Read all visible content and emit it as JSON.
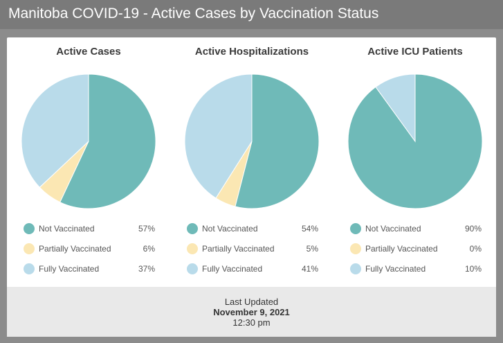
{
  "header": {
    "title": "Manitoba COVID-19 - Active Cases by Vaccination Status"
  },
  "colors": {
    "not_vaccinated": "#6fbab8",
    "partially_vaccinated": "#fbe7b3",
    "fully_vaccinated": "#b9dbea"
  },
  "chart_data": [
    {
      "type": "pie",
      "title": "Active Cases",
      "categories": [
        "Not Vaccinated",
        "Partially Vaccinated",
        "Fully Vaccinated"
      ],
      "values": [
        57,
        6,
        37
      ],
      "labels": [
        "57%",
        "6%",
        "37%"
      ]
    },
    {
      "type": "pie",
      "title": "Active Hospitalizations",
      "categories": [
        "Not Vaccinated",
        "Partially Vaccinated",
        "Fully Vaccinated"
      ],
      "values": [
        54,
        5,
        41
      ],
      "labels": [
        "54%",
        "5%",
        "41%"
      ]
    },
    {
      "type": "pie",
      "title": "Active ICU Patients",
      "categories": [
        "Not Vaccinated",
        "Partially Vaccinated",
        "Fully Vaccinated"
      ],
      "values": [
        90,
        0,
        10
      ],
      "labels": [
        "90%",
        "0%",
        "10%"
      ]
    }
  ],
  "footer": {
    "label": "Last Updated",
    "date": "November 9, 2021",
    "time": "12:30 pm"
  }
}
